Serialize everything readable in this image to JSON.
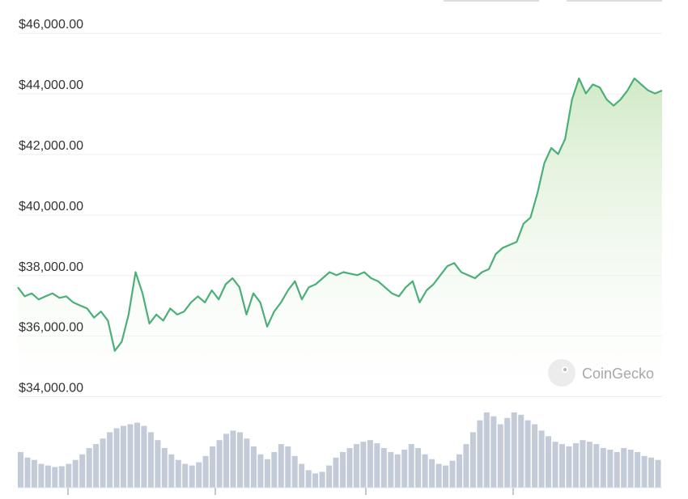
{
  "chart_data": {
    "type": "area",
    "ylim": [
      33800,
      46300
    ],
    "y_ticks": [
      {
        "label": "$46,000.00",
        "value": 46000
      },
      {
        "label": "$44,000.00",
        "value": 44000
      },
      {
        "label": "$42,000.00",
        "value": 42000
      },
      {
        "label": "$40,000.00",
        "value": 40000
      },
      {
        "label": "$38,000.00",
        "value": 38000
      },
      {
        "label": "$36,000.00",
        "value": 36000
      },
      {
        "label": "$34,000.00",
        "value": 34000
      }
    ],
    "grid": true,
    "line_color": "#4caf78",
    "fill_color": "#d8efcf",
    "volume_color": "#c3cad8",
    "series": [
      {
        "values": [
          37400,
          37100,
          37200,
          37000,
          37100,
          37200,
          37050,
          37100,
          36900,
          36800,
          36700,
          36400,
          36600,
          36300,
          35300,
          35600,
          36500,
          37900,
          37200,
          36200,
          36500,
          36300,
          36700,
          36500,
          36600,
          36900,
          37100,
          36900,
          37300,
          37000,
          37500,
          37700,
          37400,
          36500,
          37200,
          36900,
          36100,
          36600,
          36900,
          37300,
          37600,
          37000,
          37400,
          37500,
          37700,
          37900,
          37800,
          37900,
          37850,
          37800,
          37900,
          37700,
          37600,
          37400,
          37200,
          37100,
          37400,
          37600,
          36900,
          37300,
          37500,
          37800,
          38100,
          38200,
          37900,
          37800,
          37700,
          37900,
          38000,
          38500,
          38700,
          38800,
          38900,
          39500,
          39700,
          40500,
          41500,
          42000,
          41800,
          42300,
          43600,
          44300,
          43800,
          44100,
          44000,
          43600,
          43400,
          43600,
          43900,
          44300,
          44100,
          43900,
          43800,
          43900
        ],
        "volume": [
          0.45,
          0.38,
          0.35,
          0.3,
          0.28,
          0.26,
          0.27,
          0.3,
          0.35,
          0.42,
          0.5,
          0.55,
          0.62,
          0.7,
          0.75,
          0.78,
          0.8,
          0.82,
          0.78,
          0.7,
          0.6,
          0.5,
          0.42,
          0.35,
          0.3,
          0.28,
          0.32,
          0.4,
          0.52,
          0.6,
          0.68,
          0.72,
          0.7,
          0.62,
          0.52,
          0.42,
          0.36,
          0.45,
          0.55,
          0.52,
          0.4,
          0.3,
          0.22,
          0.18,
          0.2,
          0.28,
          0.38,
          0.45,
          0.5,
          0.55,
          0.58,
          0.6,
          0.56,
          0.5,
          0.45,
          0.42,
          0.48,
          0.55,
          0.5,
          0.42,
          0.36,
          0.3,
          0.28,
          0.34,
          0.42,
          0.55,
          0.7,
          0.85,
          0.95,
          0.9,
          0.8,
          0.88,
          0.95,
          0.92,
          0.85,
          0.8,
          0.72,
          0.65,
          0.58,
          0.55,
          0.52,
          0.56,
          0.6,
          0.58,
          0.55,
          0.5,
          0.48,
          0.45,
          0.5,
          0.48,
          0.45,
          0.4,
          0.38,
          0.35
        ]
      }
    ],
    "watermark": "CoinGecko"
  }
}
